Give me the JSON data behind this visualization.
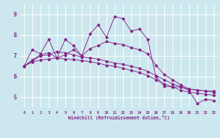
{
  "xlabel": "Windchill (Refroidissement éolien,°C)",
  "background_color": "#cce8ee",
  "grid_color": "#ffffff",
  "line_color": "#882288",
  "xlim": [
    -0.5,
    23.5
  ],
  "ylim": [
    4.5,
    9.5
  ],
  "xticks": [
    0,
    1,
    2,
    3,
    4,
    5,
    6,
    7,
    8,
    9,
    10,
    11,
    12,
    13,
    14,
    15,
    16,
    17,
    18,
    19,
    20,
    21,
    22,
    23
  ],
  "yticks": [
    5,
    6,
    7,
    8,
    9
  ],
  "series": [
    [
      6.5,
      7.3,
      7.1,
      7.8,
      6.9,
      7.8,
      7.5,
      7.0,
      8.05,
      8.5,
      7.9,
      8.9,
      8.8,
      8.2,
      8.3,
      7.8,
      6.0,
      5.55,
      5.5,
      5.5,
      5.35,
      4.7,
      4.9,
      4.85
    ],
    [
      6.5,
      6.8,
      7.05,
      7.15,
      6.9,
      7.05,
      7.3,
      7.0,
      7.35,
      7.5,
      7.7,
      7.6,
      7.55,
      7.4,
      7.3,
      7.1,
      6.55,
      6.1,
      5.85,
      5.6,
      5.4,
      5.35,
      5.3,
      5.3
    ],
    [
      6.5,
      6.75,
      7.0,
      7.05,
      7.2,
      7.15,
      7.05,
      6.95,
      6.9,
      6.85,
      6.75,
      6.65,
      6.6,
      6.5,
      6.4,
      6.25,
      6.05,
      5.85,
      5.65,
      5.5,
      5.4,
      5.35,
      5.3,
      5.25
    ],
    [
      6.5,
      6.7,
      6.8,
      6.85,
      6.9,
      6.85,
      6.82,
      6.78,
      6.72,
      6.65,
      6.55,
      6.5,
      6.4,
      6.3,
      6.2,
      6.05,
      5.85,
      5.65,
      5.5,
      5.35,
      5.25,
      5.2,
      5.15,
      5.1
    ]
  ]
}
